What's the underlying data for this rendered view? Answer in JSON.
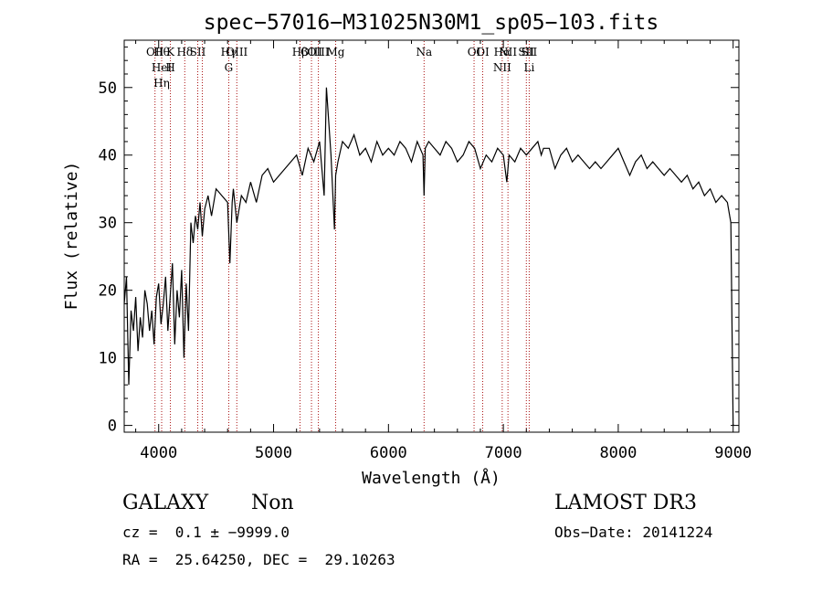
{
  "chart_data": {
    "type": "line",
    "title": "spec−57016−M31025N30M1_sp05−103.fits",
    "xlabel": "Wavelength (Å)",
    "ylabel": "Flux (relative)",
    "xlim": [
      3700,
      9050
    ],
    "ylim": [
      -1,
      57
    ],
    "xticks": [
      {
        "value": 4000,
        "label": "4000"
      },
      {
        "value": 5000,
        "label": "5000"
      },
      {
        "value": 6000,
        "label": "6000"
      },
      {
        "value": 7000,
        "label": "7000"
      },
      {
        "value": 8000,
        "label": "8000"
      },
      {
        "value": 9000,
        "label": "9000"
      }
    ],
    "yticks": [
      {
        "value": 0,
        "label": "0"
      },
      {
        "value": 10,
        "label": "10"
      },
      {
        "value": 20,
        "label": "20"
      },
      {
        "value": 30,
        "label": "30"
      },
      {
        "value": 40,
        "label": "40"
      },
      {
        "value": 50,
        "label": "50"
      }
    ],
    "grid": false,
    "line_colors": {
      "spectrum": "#000000",
      "markers": "#aa1111"
    },
    "spectral_lines": [
      {
        "x": 3968,
        "labels": [
          "OII"
        ]
      },
      {
        "x": 4026,
        "labels": [
          "Hθ",
          "HeI",
          "Hη"
        ]
      },
      {
        "x": 4102,
        "labels": [
          "K",
          "H"
        ]
      },
      {
        "x": 4227,
        "labels": [
          "Hδ"
        ]
      },
      {
        "x": 4340,
        "labels": [
          "SII"
        ]
      },
      {
        "x": 4380,
        "labels": []
      },
      {
        "x": 4610,
        "labels": [
          "Hγ",
          "G"
        ]
      },
      {
        "x": 4680,
        "labels": [
          "OIII"
        ]
      },
      {
        "x": 5230,
        "labels": [
          "Hβ"
        ]
      },
      {
        "x": 5330,
        "labels": [
          "OIII"
        ]
      },
      {
        "x": 5390,
        "labels": [
          "OIII"
        ]
      },
      {
        "x": 5540,
        "labels": [
          "Mg"
        ]
      },
      {
        "x": 6310,
        "labels": [
          "Na"
        ]
      },
      {
        "x": 6745,
        "labels": [
          "OI"
        ]
      },
      {
        "x": 6820,
        "labels": [
          "OI"
        ]
      },
      {
        "x": 6990,
        "labels": [
          "Hα",
          "NII"
        ]
      },
      {
        "x": 7040,
        "labels": [
          "NII"
        ]
      },
      {
        "x": 7200,
        "labels": [
          "SII"
        ]
      },
      {
        "x": 7225,
        "labels": [
          "SII",
          "Li"
        ]
      }
    ],
    "series": [
      {
        "x": [
          3700,
          3720,
          3740,
          3760,
          3780,
          3800,
          3820,
          3840,
          3860,
          3880,
          3900,
          3920,
          3940,
          3960,
          3980,
          4000,
          4020,
          4040,
          4060,
          4080,
          4100,
          4120,
          4140,
          4160,
          4180,
          4200,
          4220,
          4240,
          4260,
          4280,
          4300,
          4320,
          4340,
          4360,
          4380,
          4400,
          4430,
          4460,
          4500,
          4550,
          4600,
          4620,
          4640,
          4650,
          4680,
          4720,
          4760,
          4800,
          4850,
          4900,
          4950,
          5000,
          5050,
          5100,
          5150,
          5200,
          5250,
          5300,
          5350,
          5400,
          5440,
          5460,
          5500,
          5530,
          5540,
          5560,
          5600,
          5650,
          5700,
          5750,
          5800,
          5850,
          5900,
          5950,
          6000,
          6050,
          6100,
          6150,
          6200,
          6250,
          6300,
          6310,
          6320,
          6350,
          6400,
          6450,
          6500,
          6550,
          6600,
          6650,
          6700,
          6750,
          6800,
          6850,
          6900,
          6950,
          7000,
          7030,
          7050,
          7100,
          7150,
          7200,
          7250,
          7300,
          7330,
          7350,
          7400,
          7450,
          7500,
          7550,
          7600,
          7650,
          7700,
          7750,
          7800,
          7850,
          7900,
          7950,
          8000,
          8050,
          8100,
          8150,
          8200,
          8250,
          8300,
          8350,
          8400,
          8450,
          8500,
          8550,
          8600,
          8650,
          8700,
          8750,
          8800,
          8850,
          8900,
          8950,
          8980,
          9000
        ],
        "y": [
          18,
          22,
          6,
          17,
          14,
          19,
          11,
          16,
          13,
          20,
          18,
          14,
          17,
          12,
          19,
          21,
          15,
          18,
          22,
          14,
          19,
          24,
          12,
          20,
          16,
          23,
          10,
          21,
          14,
          30,
          27,
          31,
          29,
          33,
          28,
          32,
          34,
          31,
          35,
          34,
          33,
          24,
          33,
          35,
          30,
          34,
          33,
          36,
          33,
          37,
          38,
          36,
          37,
          38,
          39,
          40,
          37,
          41,
          39,
          42,
          34,
          50,
          40,
          29,
          37,
          39,
          42,
          41,
          43,
          40,
          41,
          39,
          42,
          40,
          41,
          40,
          42,
          41,
          39,
          42,
          40,
          34,
          41,
          42,
          41,
          40,
          42,
          41,
          39,
          40,
          42,
          41,
          38,
          40,
          39,
          41,
          40,
          36,
          40,
          39,
          41,
          40,
          41,
          42,
          40,
          41,
          41,
          38,
          40,
          41,
          39,
          40,
          39,
          38,
          39,
          38,
          39,
          40,
          41,
          39,
          37,
          39,
          40,
          38,
          39,
          38,
          37,
          38,
          37,
          36,
          37,
          35,
          36,
          34,
          35,
          33,
          34,
          33,
          30,
          0
        ]
      }
    ]
  },
  "info": {
    "object_class": "GALAXY",
    "subclass": "Non",
    "survey": "LAMOST DR3",
    "redshift": "cz =  0.1 ± −9999.0",
    "obs_date": "Obs−Date: 20141224",
    "coords": "RA =  25.64250, DEC =  29.10263"
  }
}
